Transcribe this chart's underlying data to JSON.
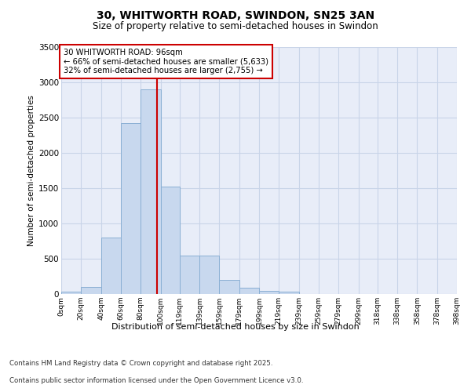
{
  "title_line1": "30, WHITWORTH ROAD, SWINDON, SN25 3AN",
  "title_line2": "Size of property relative to semi-detached houses in Swindon",
  "xlabel": "Distribution of semi-detached houses by size in Swindon",
  "ylabel": "Number of semi-detached properties",
  "property_size": 96,
  "property_label": "30 WHITWORTH ROAD: 96sqm",
  "pct_smaller": 66,
  "count_smaller": 5633,
  "pct_larger": 32,
  "count_larger": 2755,
  "bin_edges": [
    0,
    20,
    40,
    60,
    80,
    100,
    119,
    139,
    159,
    179,
    199,
    219,
    239,
    259,
    279,
    299,
    318,
    338,
    358,
    378,
    398
  ],
  "bin_labels": [
    "0sqm",
    "20sqm",
    "40sqm",
    "60sqm",
    "80sqm",
    "100sqm",
    "119sqm",
    "139sqm",
    "159sqm",
    "179sqm",
    "199sqm",
    "219sqm",
    "239sqm",
    "259sqm",
    "279sqm",
    "299sqm",
    "318sqm",
    "338sqm",
    "358sqm",
    "378sqm",
    "398sqm"
  ],
  "counts": [
    30,
    100,
    800,
    2420,
    2900,
    1520,
    550,
    550,
    200,
    90,
    40,
    30,
    0,
    0,
    0,
    0,
    0,
    0,
    0,
    0
  ],
  "bar_color": "#c8d8ee",
  "bar_edge_color": "#8aafd4",
  "vline_color": "#cc0000",
  "annotation_box_color": "#cc0000",
  "grid_color": "#c8d4e8",
  "background_color": "#e8edf8",
  "ylim": [
    0,
    3500
  ],
  "yticks": [
    0,
    500,
    1000,
    1500,
    2000,
    2500,
    3000,
    3500
  ],
  "footer_line1": "Contains HM Land Registry data © Crown copyright and database right 2025.",
  "footer_line2": "Contains public sector information licensed under the Open Government Licence v3.0."
}
